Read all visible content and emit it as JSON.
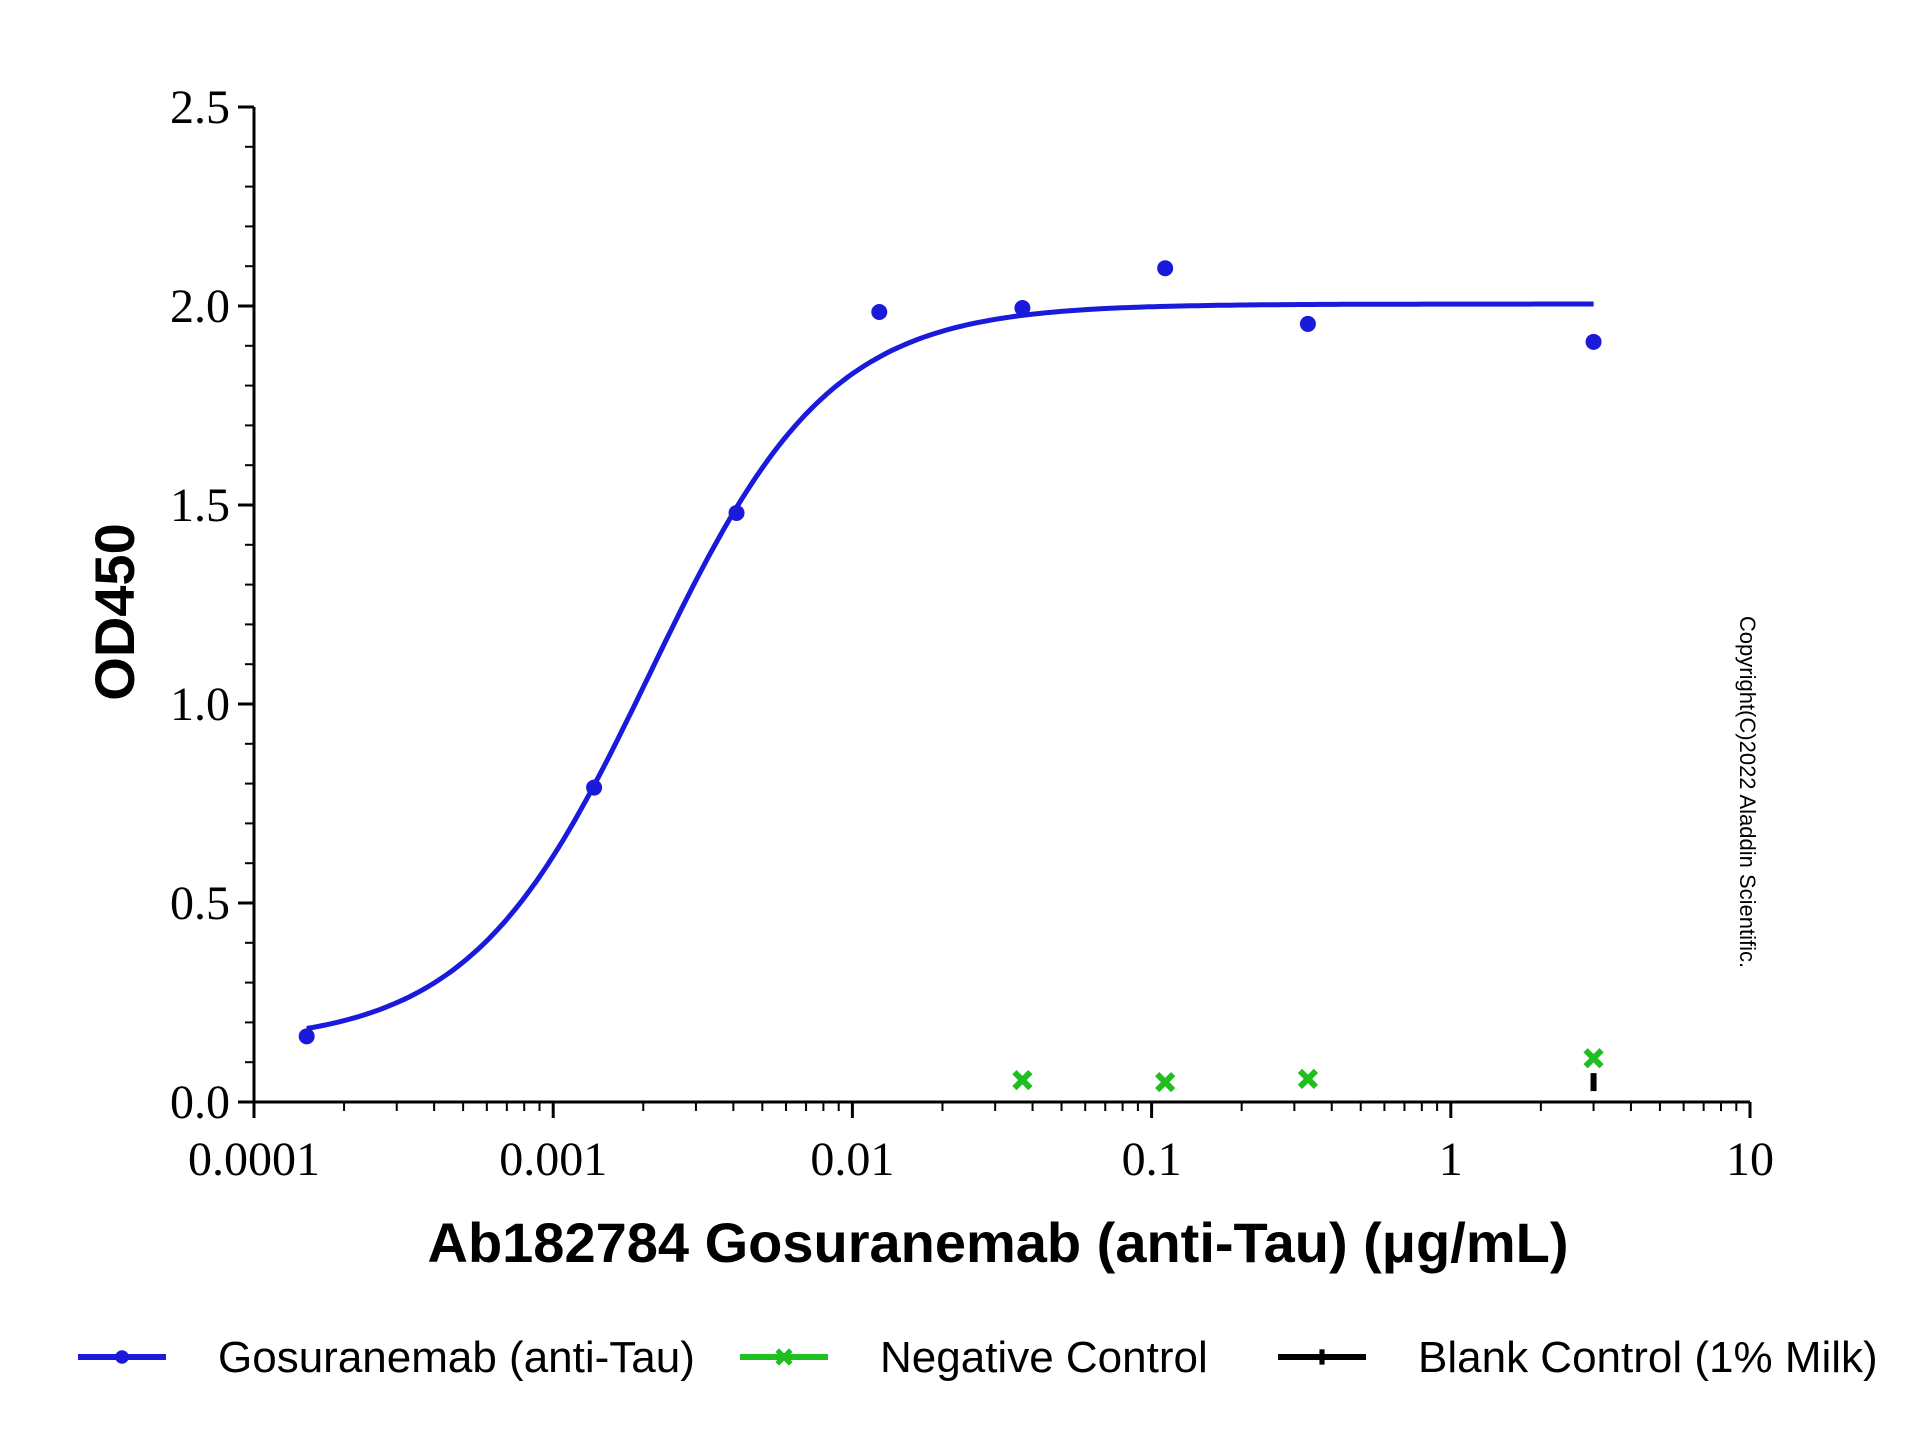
{
  "chart_data": {
    "type": "scatter",
    "xscale": "log",
    "xlabel": "Ab182784 Gosuranemab (anti-Tau) (μg/mL)",
    "ylabel": "OD450",
    "xlim": [
      0.0001,
      10
    ],
    "ylim": [
      0,
      2.5
    ],
    "x_tick_labels": [
      "0.0001",
      "0.001",
      "0.01",
      "0.1",
      "1",
      "10"
    ],
    "y_tick_labels": [
      "0.0",
      "0.5",
      "1.0",
      "1.5",
      "2.0",
      "2.5"
    ],
    "grid": false,
    "legend_position": "bottom",
    "series": [
      {
        "name": "Gosuranemab (anti-Tau)",
        "color": "#1a1adb",
        "marker": "circle",
        "fit": "4PL",
        "x": [
          0.00015,
          0.00137,
          0.0041,
          0.0123,
          0.037,
          0.111,
          0.333,
          3.0
        ],
        "y": [
          0.165,
          0.79,
          1.48,
          1.985,
          1.995,
          2.095,
          1.955,
          1.91
        ]
      },
      {
        "name": "Negative Control",
        "color": "#1fbf1f",
        "marker": "x",
        "x": [
          0.037,
          0.111,
          0.333,
          3.0
        ],
        "y": [
          0.055,
          0.05,
          0.058,
          0.11
        ]
      },
      {
        "name": "Blank Control (1% Milk)",
        "color": "#000000",
        "marker": "bar",
        "x": [
          3.0
        ],
        "y": [
          0.05
        ]
      }
    ],
    "annotation": "Copyright(C)2022 Aladdin Scientific."
  }
}
